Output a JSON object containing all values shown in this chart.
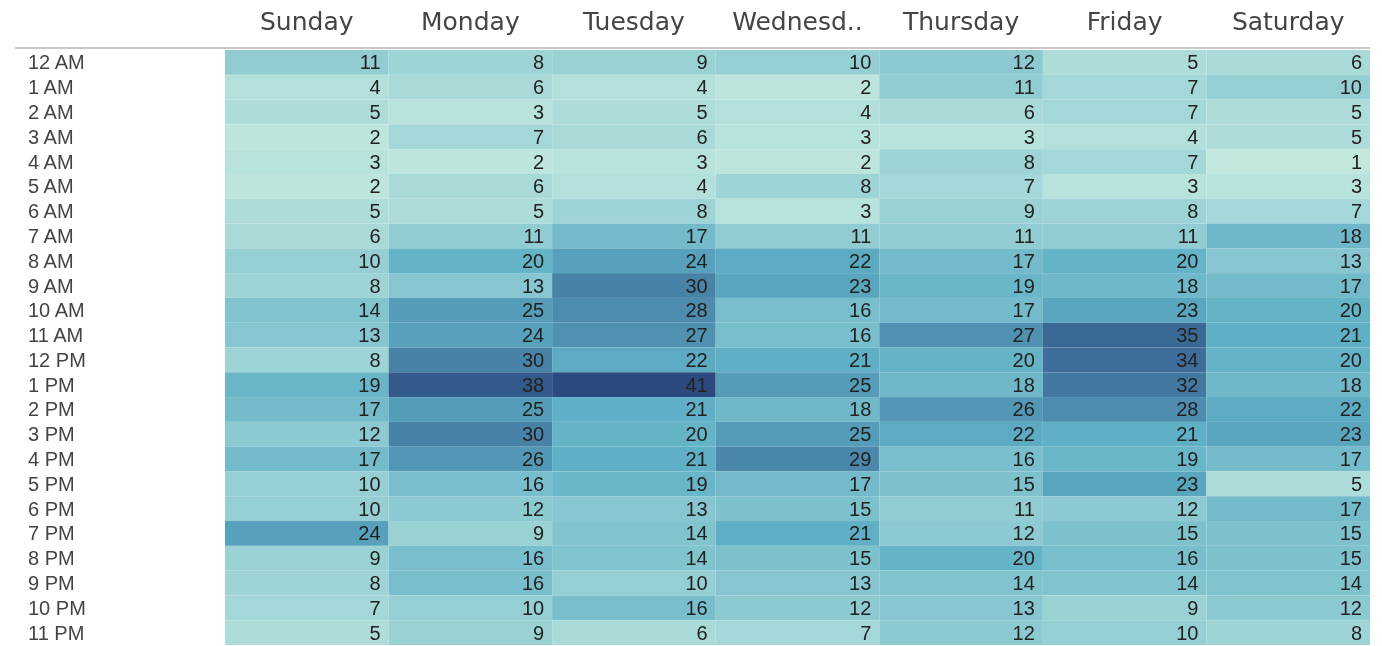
{
  "chart_data": {
    "type": "heatmap",
    "categories": [
      "Sunday",
      "Monday",
      "Tuesday",
      "Wednesd..",
      "Thursday",
      "Friday",
      "Saturday"
    ],
    "y_categories": [
      "12 AM",
      "1 AM",
      "2 AM",
      "3 AM",
      "4 AM",
      "5 AM",
      "6 AM",
      "7 AM",
      "8 AM",
      "9 AM",
      "10 AM",
      "11 AM",
      "12 PM",
      "1 PM",
      "2 PM",
      "3 PM",
      "4 PM",
      "5 PM",
      "6 PM",
      "7 PM",
      "8 PM",
      "9 PM",
      "10 PM",
      "11 PM"
    ],
    "colors": [
      "#c2e8de",
      "#5fb0c6",
      "#2c4a80"
    ],
    "cells": [
      [
        11,
        8,
        9,
        10,
        12,
        5,
        6
      ],
      [
        4,
        6,
        4,
        2,
        11,
        7,
        10
      ],
      [
        5,
        3,
        5,
        4,
        6,
        7,
        5
      ],
      [
        2,
        7,
        6,
        3,
        3,
        4,
        5
      ],
      [
        3,
        2,
        3,
        2,
        8,
        7,
        1
      ],
      [
        2,
        6,
        4,
        8,
        7,
        3,
        3
      ],
      [
        5,
        5,
        8,
        3,
        9,
        8,
        7
      ],
      [
        6,
        11,
        17,
        11,
        11,
        11,
        18
      ],
      [
        10,
        20,
        24,
        22,
        17,
        20,
        13
      ],
      [
        8,
        13,
        30,
        23,
        19,
        18,
        17
      ],
      [
        14,
        25,
        28,
        16,
        17,
        23,
        20
      ],
      [
        13,
        24,
        27,
        16,
        27,
        35,
        21
      ],
      [
        8,
        30,
        22,
        21,
        20,
        34,
        20
      ],
      [
        19,
        38,
        41,
        25,
        18,
        32,
        18
      ],
      [
        17,
        25,
        21,
        18,
        26,
        28,
        22
      ],
      [
        12,
        30,
        20,
        25,
        22,
        21,
        23
      ],
      [
        17,
        26,
        21,
        29,
        16,
        19,
        17
      ],
      [
        10,
        16,
        19,
        17,
        15,
        23,
        5
      ],
      [
        10,
        12,
        13,
        15,
        11,
        12,
        17
      ],
      [
        24,
        9,
        14,
        21,
        12,
        15,
        15
      ],
      [
        9,
        16,
        14,
        15,
        20,
        16,
        15
      ],
      [
        8,
        16,
        10,
        13,
        14,
        14,
        14
      ],
      [
        7,
        10,
        16,
        12,
        13,
        9,
        12
      ],
      [
        5,
        9,
        6,
        7,
        12,
        10,
        8
      ]
    ],
    "data_labels": true
  }
}
